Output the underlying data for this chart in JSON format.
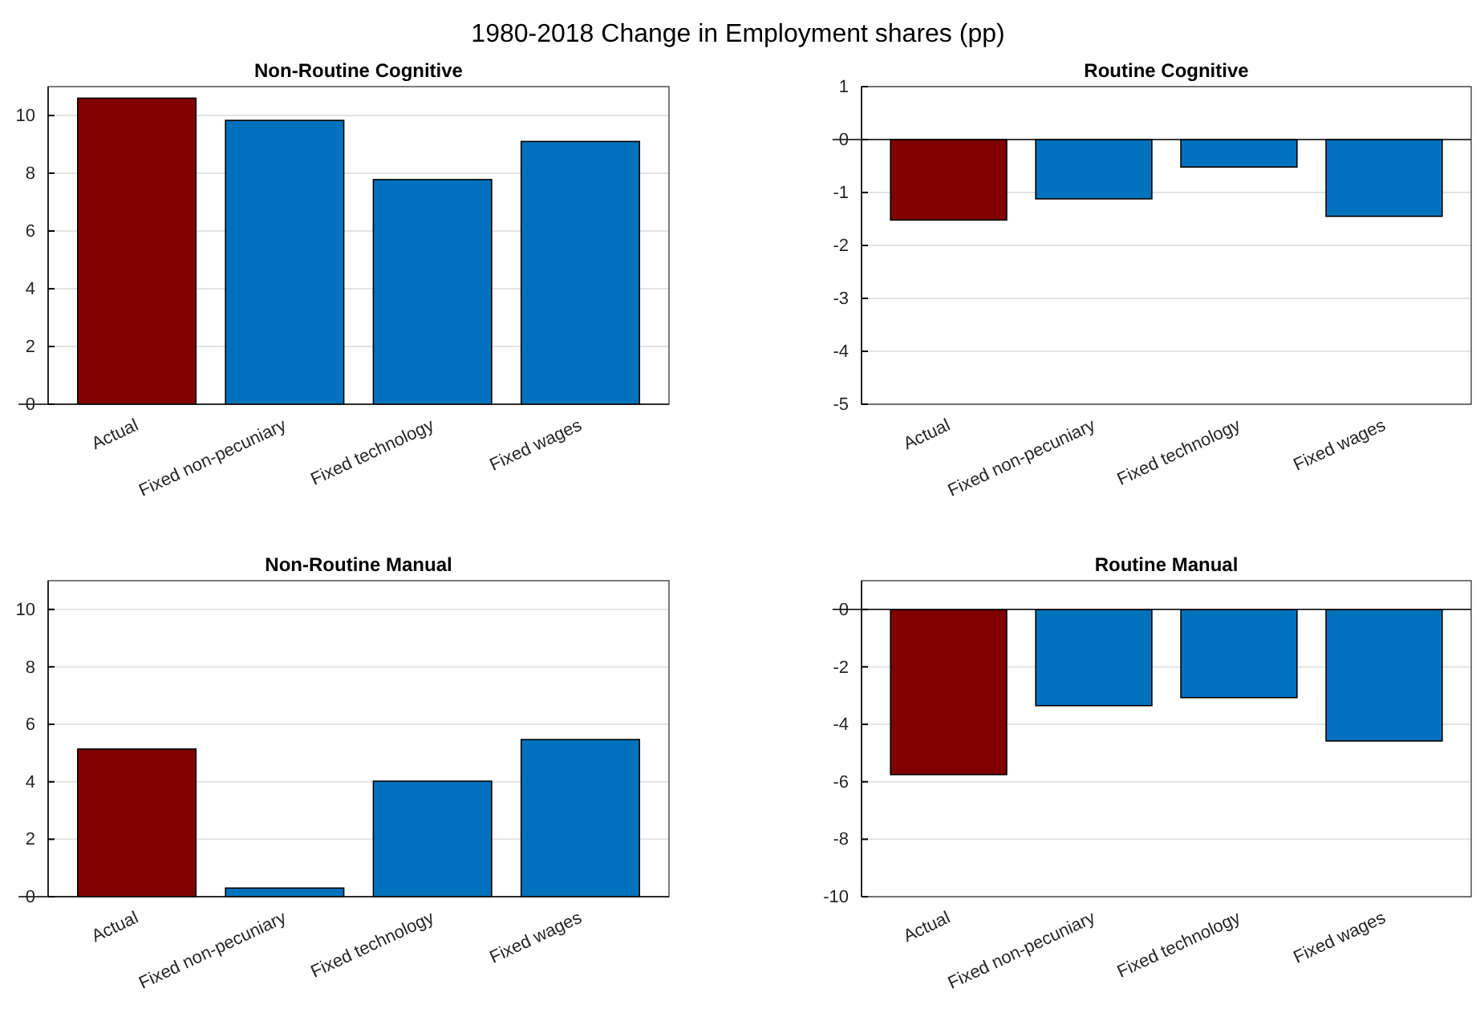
{
  "chart_data": [
    {
      "type": "bar",
      "title": "Non-Routine Cognitive",
      "annotations": [
        "1980-2018 Change in Employment shares (pp)"
      ],
      "categories": [
        "Actual",
        "Fixed non-pecuniary",
        "Fixed technology",
        "Fixed wages"
      ],
      "values": [
        10.6,
        9.83,
        7.78,
        9.1
      ],
      "colors": [
        "#800000",
        "#0072bd",
        "#0072bd",
        "#0072bd"
      ],
      "ylim": [
        0,
        11
      ],
      "yticks": [
        0,
        2,
        4,
        6,
        8,
        10
      ],
      "grid": "y"
    },
    {
      "type": "bar",
      "title": "Routine Cognitive",
      "categories": [
        "Actual",
        "Fixed non-pecuniary",
        "Fixed technology",
        "Fixed wages"
      ],
      "values": [
        -1.52,
        -1.12,
        -0.52,
        -1.45
      ],
      "colors": [
        "#800000",
        "#0072bd",
        "#0072bd",
        "#0072bd"
      ],
      "ylim": [
        -5,
        1
      ],
      "yticks": [
        -5,
        -4,
        -3,
        -2,
        -1,
        0,
        1
      ],
      "grid": "y"
    },
    {
      "type": "bar",
      "title": "Non-Routine Manual",
      "categories": [
        "Actual",
        "Fixed non-pecuniary",
        "Fixed technology",
        "Fixed wages"
      ],
      "values": [
        5.14,
        0.3,
        4.02,
        5.47
      ],
      "colors": [
        "#800000",
        "#0072bd",
        "#0072bd",
        "#0072bd"
      ],
      "ylim": [
        0,
        11
      ],
      "yticks": [
        0,
        2,
        4,
        6,
        8,
        10
      ],
      "grid": "y"
    },
    {
      "type": "bar",
      "title": "Routine Manual",
      "categories": [
        "Actual",
        "Fixed non-pecuniary",
        "Fixed technology",
        "Fixed wages"
      ],
      "values": [
        -5.75,
        -3.35,
        -3.07,
        -4.58
      ],
      "colors": [
        "#800000",
        "#0072bd",
        "#0072bd",
        "#0072bd"
      ],
      "ylim": [
        -10,
        1
      ],
      "yticks": [
        -10,
        -8,
        -6,
        -4,
        -2,
        0
      ],
      "grid": "y"
    }
  ]
}
